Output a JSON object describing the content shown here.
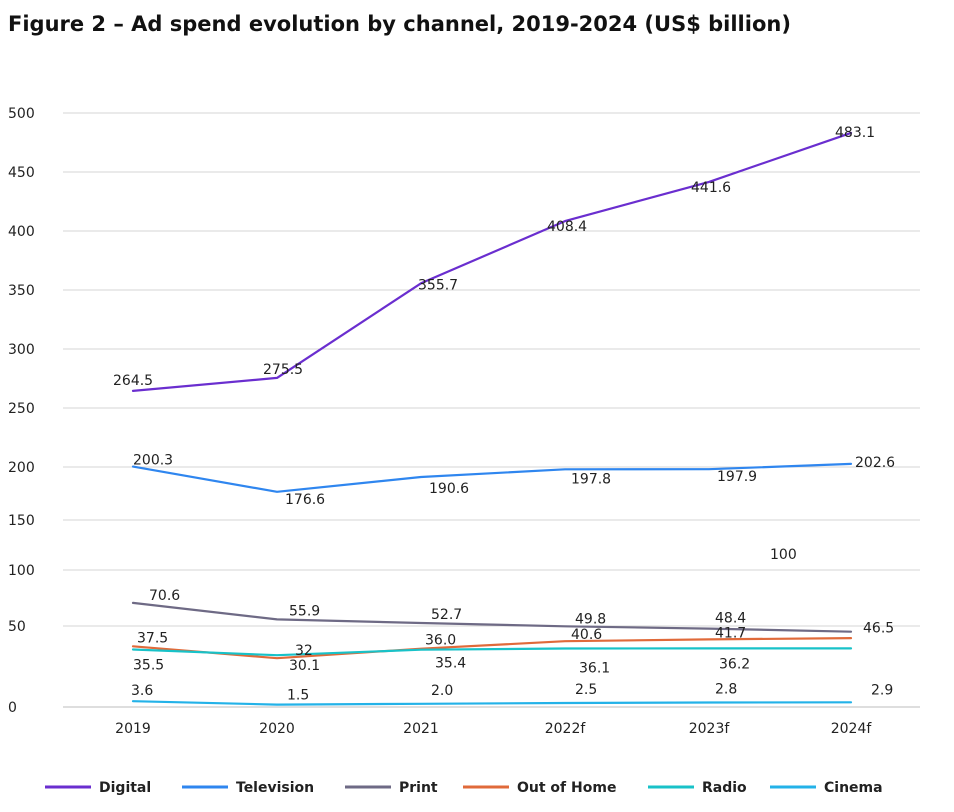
{
  "chart_data": {
    "type": "line",
    "title": "Figure 2 – Ad spend evolution by channel, 2019-2024 (US$ billion)",
    "xlabel": "",
    "ylabel": "",
    "categories": [
      "2019",
      "2020",
      "2021",
      "2022f",
      "2023f",
      "2024f"
    ],
    "y_ticks": [
      "500",
      "450",
      "400",
      "350",
      "300",
      "250",
      "200",
      "150",
      "100",
      "50",
      "0"
    ],
    "grid": true,
    "legend_position": "bottom",
    "series": [
      {
        "name": "Digital",
        "color": "#6a2ecf",
        "values": [
          264.5,
          275.5,
          355.7,
          408.4,
          441.6,
          483.1
        ],
        "labels": [
          "264.5",
          "275.5",
          "355.7",
          "408.4",
          "441.6",
          "483.1"
        ]
      },
      {
        "name": "Television",
        "color": "#2f86ef",
        "values": [
          200.3,
          176.6,
          190.6,
          197.8,
          197.9,
          202.6
        ],
        "labels": [
          "200.3",
          "176.6",
          "190.6",
          "197.8",
          "197.9",
          "202.6"
        ]
      },
      {
        "name": "Print",
        "color": "#6e6a85",
        "values": [
          70.6,
          55.9,
          52.7,
          49.8,
          48.4,
          46.5
        ],
        "labels": [
          "70.6",
          "55.9",
          "52.7",
          "49.8",
          "48.4",
          "46.5"
        ]
      },
      {
        "name": "Out of Home",
        "color": "#e06a3a",
        "values": [
          37.5,
          30.1,
          36.0,
          40.6,
          41.7,
          42.5
        ],
        "labels": [
          "37.5",
          "30.1",
          "36.0",
          "40.6",
          "41.7",
          ""
        ]
      },
      {
        "name": "Radio",
        "color": "#18c2c8",
        "values": [
          35.5,
          32,
          35.4,
          36.1,
          36.2,
          36.2
        ],
        "labels": [
          "35.5",
          "32",
          "35.4",
          "36.1",
          "36.2",
          ""
        ]
      },
      {
        "name": "Cinema",
        "color": "#23b2e8",
        "values": [
          3.6,
          1.5,
          2.0,
          2.5,
          2.8,
          2.9
        ],
        "labels": [
          "3.6",
          "1.5",
          "2.0",
          "2.5",
          "2.8",
          "2.9"
        ]
      }
    ],
    "annotations": [
      {
        "text": "100"
      }
    ]
  }
}
